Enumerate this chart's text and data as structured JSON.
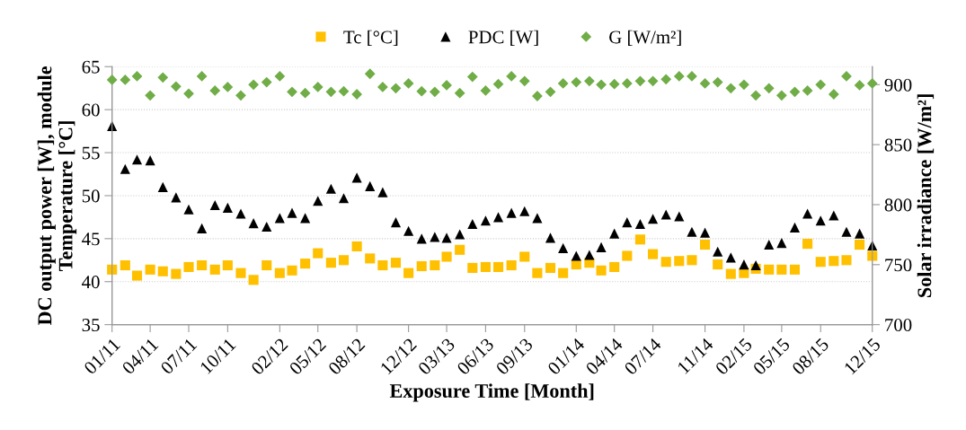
{
  "chart_data": {
    "type": "scatter",
    "xlabel": "Exposure Time [Month]",
    "ylabel": "DC output power [W], module\nTemperature [°C]",
    "y2label": "Solar irradiance [W/m²]",
    "x": [
      "2011-01",
      "2011-02",
      "2011-03",
      "2011-04",
      "2011-05",
      "2011-06",
      "2011-07",
      "2011-08",
      "2011-09",
      "2011-10",
      "2011-11",
      "2011-12",
      "2012-01",
      "2012-02",
      "2012-03",
      "2012-04",
      "2012-05",
      "2012-06",
      "2012-07",
      "2012-08",
      "2012-09",
      "2012-10",
      "2012-11",
      "2012-12",
      "2013-01",
      "2013-02",
      "2013-03",
      "2013-04",
      "2013-05",
      "2013-06",
      "2013-07",
      "2013-08",
      "2013-09",
      "2013-10",
      "2013-11",
      "2013-12",
      "2014-01",
      "2014-02",
      "2014-03",
      "2014-04",
      "2014-05",
      "2014-06",
      "2014-07",
      "2014-08",
      "2014-09",
      "2014-10",
      "2014-11",
      "2014-12",
      "2015-01",
      "2015-02",
      "2015-03",
      "2015-04",
      "2015-05",
      "2015-06",
      "2015-07",
      "2015-08",
      "2015-09",
      "2015-10",
      "2015-11",
      "2015-12"
    ],
    "series": [
      {
        "name": "Tc [°C]",
        "color": "#ffc000",
        "marker": "square",
        "values": [
          41.4,
          41.9,
          40.7,
          41.4,
          41.2,
          40.9,
          41.7,
          41.9,
          41.4,
          41.9,
          41.0,
          40.2,
          41.9,
          41.0,
          41.3,
          42.1,
          43.3,
          42.2,
          42.5,
          44.1,
          42.7,
          41.9,
          42.2,
          41.0,
          41.8,
          41.9,
          42.9,
          43.7,
          41.6,
          41.7,
          41.7,
          41.9,
          42.9,
          41.0,
          41.6,
          41.0,
          42.0,
          42.2,
          41.3,
          41.7,
          43.0,
          44.9,
          43.2,
          42.3,
          42.4,
          42.5,
          44.3,
          42.0,
          40.9,
          41.0,
          41.5,
          41.4,
          41.4,
          41.4,
          44.4,
          42.3,
          42.4,
          42.5,
          44.3,
          43.0
        ]
      },
      {
        "name": "PDC [W]",
        "color": "#000000",
        "marker": "triangle",
        "values": [
          58.1,
          53.1,
          54.2,
          54.1,
          51.0,
          49.8,
          48.4,
          46.2,
          48.9,
          48.6,
          47.9,
          46.8,
          46.4,
          47.4,
          48.0,
          47.4,
          49.4,
          50.8,
          49.7,
          52.1,
          51.1,
          50.4,
          46.9,
          45.9,
          45.0,
          45.2,
          45.1,
          45.5,
          46.7,
          47.1,
          47.5,
          48.0,
          48.2,
          47.4,
          45.1,
          43.9,
          43.0,
          43.1,
          44.0,
          45.6,
          46.9,
          46.7,
          47.3,
          47.8,
          47.6,
          45.8,
          45.7,
          43.5,
          42.8,
          42.0,
          41.9,
          44.3,
          44.5,
          46.3,
          47.9,
          47.1,
          47.7,
          45.8,
          45.6,
          44.2
        ]
      },
      {
        "name": "G [W/m²]",
        "color": "#70ad47",
        "marker": "diamond",
        "axis": "y2",
        "values": [
          904,
          904,
          907,
          891,
          906,
          898.5,
          892.5,
          907,
          895,
          898,
          891,
          900,
          902,
          907,
          894,
          893,
          898,
          894,
          894.5,
          892,
          909,
          898,
          897,
          901,
          894.5,
          894,
          899.5,
          893,
          906.5,
          895,
          900.5,
          907,
          903,
          890.5,
          894,
          901,
          902,
          903,
          900,
          900.5,
          901,
          903,
          903,
          904.5,
          907,
          907,
          901,
          902,
          897,
          900,
          891,
          897,
          891,
          894,
          895,
          900,
          892,
          907,
          899.5,
          901
        ]
      }
    ],
    "xlim": [
      "2011-01",
      "2015-12"
    ],
    "xticks": [
      {
        "value": "2011-01",
        "label": "01/11"
      },
      {
        "value": "2011-04",
        "label": "04/11"
      },
      {
        "value": "2011-07",
        "label": "07/11"
      },
      {
        "value": "2011-10",
        "label": "10/11"
      },
      {
        "value": "2012-02",
        "label": "02/12"
      },
      {
        "value": "2012-05",
        "label": "05/12"
      },
      {
        "value": "2012-08",
        "label": "08/12"
      },
      {
        "value": "2012-12",
        "label": "12/12"
      },
      {
        "value": "2013-03",
        "label": "03/13"
      },
      {
        "value": "2013-06",
        "label": "06/13"
      },
      {
        "value": "2013-09",
        "label": "09/13"
      },
      {
        "value": "2014-01",
        "label": "01/14"
      },
      {
        "value": "2014-04",
        "label": "04/14"
      },
      {
        "value": "2014-07",
        "label": "07/14"
      },
      {
        "value": "2014-11",
        "label": "11/14"
      },
      {
        "value": "2015-02",
        "label": "02/15"
      },
      {
        "value": "2015-05",
        "label": "05/15"
      },
      {
        "value": "2015-08",
        "label": "08/15"
      },
      {
        "value": "2015-12",
        "label": "12/15"
      }
    ],
    "ylim": [
      35,
      65
    ],
    "yticks": [
      35,
      40,
      45,
      50,
      55,
      60,
      65
    ],
    "y2lim": [
      700,
      915
    ],
    "y2ticks": [
      700,
      750,
      800,
      850,
      900
    ],
    "grid": "y",
    "legend": "top"
  }
}
